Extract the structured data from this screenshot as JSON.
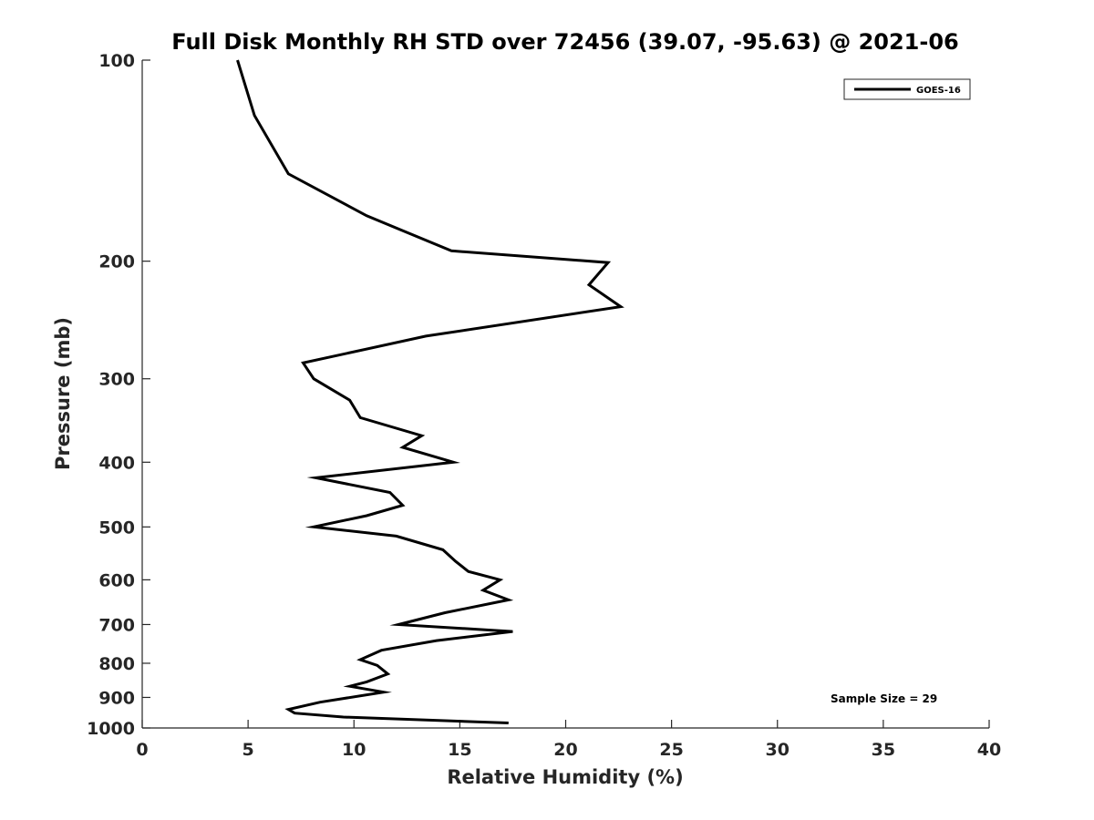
{
  "chart_data": {
    "type": "line",
    "title": "Full Disk Monthly RH STD over 72456 (39.07, -95.63) @ 2021-06",
    "xlabel": "Relative Humidity (%)",
    "ylabel": "Pressure (mb)",
    "xlim": [
      0,
      40
    ],
    "ylim": [
      100,
      1000
    ],
    "y_scale": "log",
    "y_reversed": true,
    "x_ticks": [
      0,
      5,
      10,
      15,
      20,
      25,
      30,
      35,
      40
    ],
    "y_ticks": [
      100,
      200,
      300,
      400,
      500,
      600,
      700,
      800,
      900,
      1000
    ],
    "grid": false,
    "legend": {
      "position": "top-right",
      "entries": [
        "GOES-16"
      ]
    },
    "annotation": "Sample Size = 29",
    "series": [
      {
        "name": "GOES-16",
        "color": "#000000",
        "points": [
          [
            4.5,
            100
          ],
          [
            5.3,
            121
          ],
          [
            6.9,
            148
          ],
          [
            10.6,
            171
          ],
          [
            14.6,
            193
          ],
          [
            22.0,
            201
          ],
          [
            21.1,
            217
          ],
          [
            22.6,
            234
          ],
          [
            13.4,
            259
          ],
          [
            7.6,
            284
          ],
          [
            8.1,
            300
          ],
          [
            9.8,
            323
          ],
          [
            10.3,
            343
          ],
          [
            13.2,
            365
          ],
          [
            12.3,
            380
          ],
          [
            14.7,
            400
          ],
          [
            8.2,
            422
          ],
          [
            11.7,
            444
          ],
          [
            12.3,
            464
          ],
          [
            10.6,
            481
          ],
          [
            8.1,
            500
          ],
          [
            12.0,
            516
          ],
          [
            14.2,
            541
          ],
          [
            14.8,
            563
          ],
          [
            15.4,
            583
          ],
          [
            16.9,
            600
          ],
          [
            16.1,
            622
          ],
          [
            17.3,
            643
          ],
          [
            14.3,
            672
          ],
          [
            12.1,
            700
          ],
          [
            17.5,
            717
          ],
          [
            13.9,
            740
          ],
          [
            11.3,
            765
          ],
          [
            10.3,
            790
          ],
          [
            11.1,
            806
          ],
          [
            11.6,
            830
          ],
          [
            10.6,
            853
          ],
          [
            9.8,
            866
          ],
          [
            11.4,
            884
          ],
          [
            8.4,
            915
          ],
          [
            6.9,
            938
          ],
          [
            7.2,
            950
          ],
          [
            9.5,
            963
          ],
          [
            17.3,
            983
          ]
        ]
      }
    ]
  }
}
